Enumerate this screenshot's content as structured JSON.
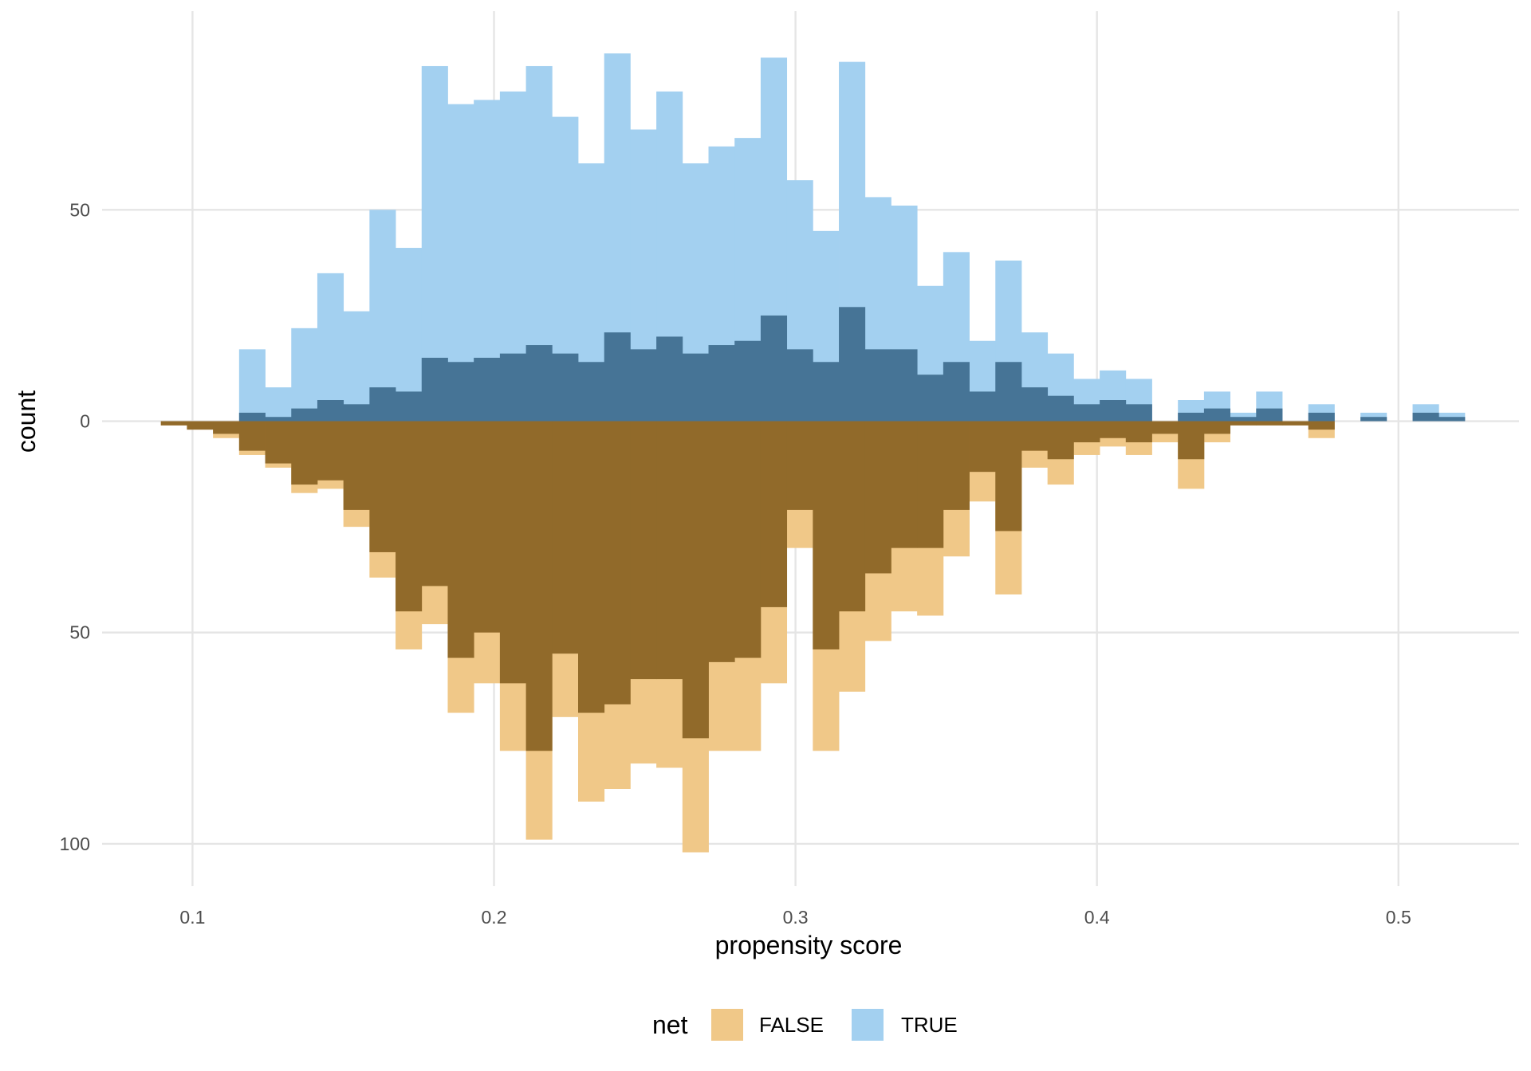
{
  "chart_data": {
    "type": "bar",
    "subtype": "mirrored histogram",
    "title": "",
    "xlabel": "propensity score",
    "ylabel": "count",
    "xlim": [
      0.07,
      0.54
    ],
    "ylim": [
      -110,
      97
    ],
    "x_ticks": [
      0.1,
      0.2,
      0.3,
      0.4,
      0.5
    ],
    "x_tick_labels": [
      "0.1",
      "0.2",
      "0.3",
      "0.4",
      "0.5"
    ],
    "y_ticks": [
      50,
      0,
      -50,
      -100
    ],
    "y_tick_labels": [
      "50",
      "0",
      "50",
      "100"
    ],
    "grid": true,
    "legend": {
      "title": "net",
      "position": "bottom",
      "entries": [
        {
          "label": "FALSE",
          "color": "#F0C888"
        },
        {
          "label": "TRUE",
          "color": "#A3D0F0"
        }
      ]
    },
    "bin_width": 0.00865,
    "bin_starts": [
      0.0895,
      0.09815,
      0.1068,
      0.11545,
      0.1241,
      0.13275,
      0.1414,
      0.15005,
      0.1587,
      0.16735,
      0.176,
      0.18465,
      0.1933,
      0.20195,
      0.2106,
      0.21925,
      0.2279,
      0.23655,
      0.2452,
      0.25385,
      0.2625,
      0.27115,
      0.2798,
      0.28845,
      0.2971,
      0.30575,
      0.3144,
      0.32305,
      0.3317,
      0.34035,
      0.349,
      0.35765,
      0.3663,
      0.37495,
      0.3836,
      0.39225,
      0.4009,
      0.40955,
      0.4182,
      0.42685,
      0.4355,
      0.44415,
      0.4528,
      0.46145,
      0.4701,
      0.47875,
      0.4874,
      0.49605,
      0.5047,
      0.51335
    ],
    "series": [
      {
        "name": "TRUE",
        "role": "raw",
        "color": "#A3D0F0",
        "values": [
          0,
          0,
          0,
          17,
          8,
          22,
          35,
          26,
          50,
          41,
          84,
          75,
          76,
          78,
          84,
          72,
          61,
          87,
          69,
          78,
          61,
          65,
          67,
          86,
          57,
          45,
          85,
          53,
          51,
          32,
          40,
          19,
          38,
          21,
          16,
          10,
          12,
          10,
          0,
          5,
          7,
          2,
          7,
          0,
          4,
          0,
          2,
          0,
          4,
          2
        ]
      },
      {
        "name": "TRUE",
        "role": "weighted",
        "color": "#467496",
        "values": [
          0,
          0,
          0,
          2,
          1,
          3,
          5,
          4,
          8,
          7,
          15,
          14,
          15,
          16,
          18,
          16,
          14,
          21,
          17,
          20,
          16,
          18,
          19,
          25,
          17,
          14,
          27,
          17,
          17,
          11,
          14,
          7,
          14,
          8,
          6,
          4,
          5,
          4,
          0,
          2,
          3,
          1,
          3,
          0,
          2,
          0,
          1,
          0,
          2,
          1
        ]
      },
      {
        "name": "FALSE",
        "role": "raw",
        "color": "#F0C888",
        "values": [
          1,
          2,
          4,
          8,
          11,
          17,
          16,
          25,
          37,
          54,
          48,
          69,
          62,
          78,
          99,
          70,
          90,
          87,
          81,
          82,
          102,
          78,
          78,
          62,
          30,
          78,
          64,
          52,
          45,
          46,
          32,
          19,
          41,
          11,
          15,
          8,
          6,
          8,
          5,
          16,
          5,
          1,
          1,
          1,
          4,
          0,
          0,
          0,
          0,
          0
        ]
      },
      {
        "name": "FALSE",
        "role": "weighted",
        "color": "#916A2A",
        "values": [
          1,
          2,
          3,
          7,
          10,
          15,
          14,
          21,
          31,
          45,
          39,
          56,
          50,
          62,
          78,
          55,
          69,
          67,
          61,
          61,
          75,
          57,
          56,
          44,
          21,
          54,
          45,
          36,
          30,
          30,
          21,
          12,
          26,
          7,
          9,
          5,
          4,
          5,
          3,
          9,
          3,
          1,
          1,
          1,
          2,
          0,
          0,
          0,
          0,
          0
        ]
      }
    ]
  }
}
